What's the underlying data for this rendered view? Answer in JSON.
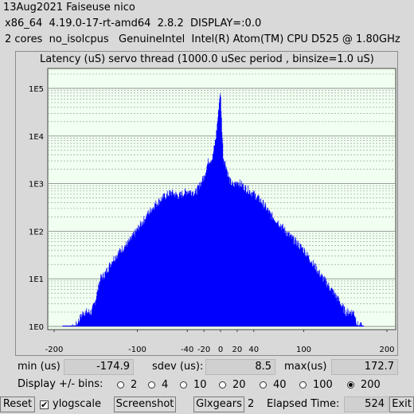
{
  "header": {
    "line1": "13Aug2021 Faiseuse nico",
    "line2": "x86_64  4.19.0-17-rt-amd64  2.8.2  DISPLAY=:0.0",
    "line3": "2 cores  no_isolcpus   GenuineIntel  Intel(R) Atom(TM) CPU D525 @ 1.80GHz"
  },
  "chart_data": {
    "type": "bar",
    "title": "Latency (uS) servo thread (1000.0 uSec period , binsize=1.0 uS)",
    "x_ticks": [
      -200,
      -100,
      -40,
      -20,
      0,
      20,
      40,
      100,
      200
    ],
    "y_ticks": [
      "1E0",
      "1E1",
      "1E2",
      "1E3",
      "1E4",
      "1E5"
    ],
    "y_scale": "log",
    "xlim": [
      -200,
      200
    ],
    "ylim_decades": [
      0,
      5.5
    ],
    "colors": {
      "bar": "#0000ff",
      "plot_bg": "#f0fff0",
      "grid": "#909090"
    },
    "x": [
      -190,
      -175,
      -165,
      -160,
      -155,
      -150,
      -145,
      -140,
      -130,
      -120,
      -110,
      -100,
      -90,
      -80,
      -70,
      -60,
      -50,
      -40,
      -30,
      -20,
      -15,
      -10,
      -6,
      -3,
      -1,
      0,
      1,
      3,
      6,
      10,
      15,
      20,
      30,
      40,
      50,
      60,
      70,
      80,
      90,
      100,
      110,
      120,
      130,
      140,
      150,
      155,
      160,
      165,
      170,
      172
    ],
    "counts": [
      0,
      1,
      2,
      2,
      2,
      4,
      10,
      12,
      25,
      40,
      60,
      110,
      200,
      350,
      500,
      650,
      550,
      700,
      650,
      1400,
      3000,
      3400,
      9000,
      30000,
      80000,
      60000,
      20000,
      3500,
      2500,
      1200,
      900,
      1100,
      800,
      600,
      400,
      220,
      150,
      90,
      60,
      40,
      22,
      12,
      7,
      4,
      2,
      2,
      2,
      1,
      1,
      0
    ]
  },
  "stats": {
    "min_label": "min (us)",
    "min_value": "-174.9",
    "sdev_label": "sdev (us):",
    "sdev_value": "8.5",
    "max_label": "max(us)",
    "max_value": "172.7"
  },
  "bins": {
    "label": "Display +/- bins:",
    "options": [
      "2",
      "4",
      "10",
      "20",
      "40",
      "100",
      "200"
    ],
    "selected": "200"
  },
  "toolbar": {
    "reset_label": "Reset",
    "ylogscale_label": "ylogscale",
    "ylogscale_checked": true,
    "screenshot_label": "Screenshot",
    "glxgears_label": "Glxgears",
    "glxgears_count": "2",
    "elapsed_label": "Elapsed Time:",
    "elapsed_value": "524",
    "exit_label": "Exit"
  }
}
